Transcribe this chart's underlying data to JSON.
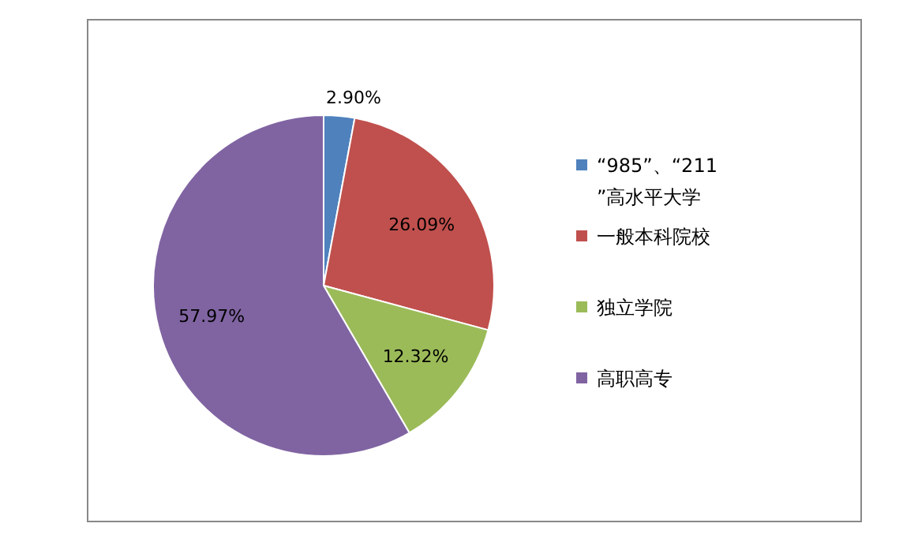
{
  "chart_data": {
    "type": "pie",
    "categories": [
      "“985”、“211”高水平大学",
      "一般本科院校",
      "独立学院",
      "高职高专"
    ],
    "values": [
      2.9,
      26.09,
      12.32,
      57.97
    ],
    "colors": [
      "#4f81bd",
      "#c0504d",
      "#9bbb59",
      "#8064a2"
    ],
    "value_labels": [
      "2.90%",
      "26.09%",
      "12.32%",
      "57.97%"
    ],
    "legend": "right"
  }
}
